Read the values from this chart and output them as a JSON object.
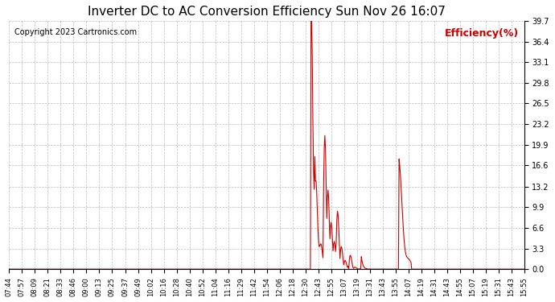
{
  "title": "Inverter DC to AC Conversion Efficiency Sun Nov 26 16:07",
  "copyright": "Copyright 2023 Cartronics.com",
  "ylabel": "Efficiency(%)",
  "ylabel_color": "#cc0000",
  "copyright_color": "#000000",
  "title_color": "#000000",
  "background_color": "#ffffff",
  "line_color": "#cc0000",
  "grid_color": "#aaaaaa",
  "ylim": [
    0.0,
    39.7
  ],
  "yticks": [
    0.0,
    3.3,
    6.6,
    9.9,
    13.2,
    16.6,
    19.9,
    23.2,
    26.5,
    29.8,
    33.1,
    36.4,
    39.7
  ],
  "xtick_labels": [
    "07:44",
    "07:57",
    "08:09",
    "08:21",
    "08:33",
    "08:46",
    "09:00",
    "09:13",
    "09:25",
    "09:37",
    "09:49",
    "10:02",
    "10:16",
    "10:28",
    "10:40",
    "10:52",
    "11:04",
    "11:16",
    "11:29",
    "11:42",
    "11:54",
    "12:06",
    "12:18",
    "12:30",
    "12:43",
    "12:55",
    "13:07",
    "13:19",
    "13:31",
    "13:43",
    "13:55",
    "14:07",
    "14:19",
    "14:31",
    "14:43",
    "14:55",
    "15:07",
    "15:19",
    "15:31",
    "15:43",
    "15:55"
  ]
}
